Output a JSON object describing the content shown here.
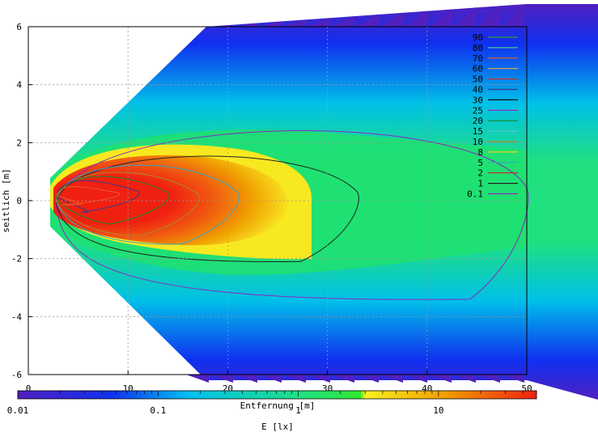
{
  "chart_data": {
    "type": "heatmap",
    "xlabel": "Entfernung [m]",
    "ylabel": "seitlich [m]",
    "xlim": [
      0,
      50
    ],
    "ylim": [
      -6,
      6
    ],
    "x_ticks": [
      "0",
      "10",
      "20",
      "30",
      "40",
      "50"
    ],
    "y_ticks": [
      "6",
      "4",
      "2",
      "0",
      "-2",
      "-4",
      "-6"
    ],
    "grid": true,
    "legend_position": "top-right",
    "contour_legend": [
      {
        "label": "90",
        "color": "#2ca02c"
      },
      {
        "label": "80",
        "color": "#4dc89a"
      },
      {
        "label": "70",
        "color": "#e85a2a"
      },
      {
        "label": "60",
        "color": "#e8a23a"
      },
      {
        "label": "50",
        "color": "#c83028"
      },
      {
        "label": "40",
        "color": "#3a3a8a"
      },
      {
        "label": "30",
        "color": "#111111"
      },
      {
        "label": "25",
        "color": "#9a20c0"
      },
      {
        "label": "20",
        "color": "#168a2a"
      },
      {
        "label": "15",
        "color": "#50c8d8"
      },
      {
        "label": "10",
        "color": "#a88a30"
      },
      {
        "label": "8",
        "color": "#e8d020"
      },
      {
        "label": "5",
        "color": "#30a8c8"
      },
      {
        "label": "2",
        "color": "#d02020"
      },
      {
        "label": "1",
        "color": "#222222"
      },
      {
        "label": "0.1",
        "color": "#8a28c0"
      }
    ],
    "colorbar": {
      "label": "E [lx]",
      "scale": "log",
      "range": [
        0.01,
        50
      ],
      "ticks": [
        "0.01",
        "0.1",
        "1",
        "10"
      ],
      "colors": [
        "#5020c0",
        "#1030f0",
        "#00c0f0",
        "#20e080",
        "#30e830",
        "#f8f020",
        "#f0a000",
        "#f02010"
      ]
    },
    "contours": [
      {
        "level": "0.1",
        "center_y": -0.2,
        "x_end": 50,
        "half_width": 3.2
      },
      {
        "level": "1",
        "center_y": -0.1,
        "x_end": 33,
        "half_width": 2.0
      },
      {
        "level": "5",
        "center_y": 0.0,
        "x_end": 21,
        "half_width": 1.5
      },
      {
        "level": "10",
        "center_y": 0.0,
        "x_end": 17,
        "half_width": 1.2
      },
      {
        "level": "20",
        "center_y": 0.1,
        "x_end": 14,
        "half_width": 0.9
      },
      {
        "level": "40",
        "center_y": 0.2,
        "x_end": 11,
        "half_width": 0.6
      },
      {
        "level": "70",
        "center_y": 0.2,
        "x_end": 9,
        "half_width": 0.35
      }
    ]
  }
}
